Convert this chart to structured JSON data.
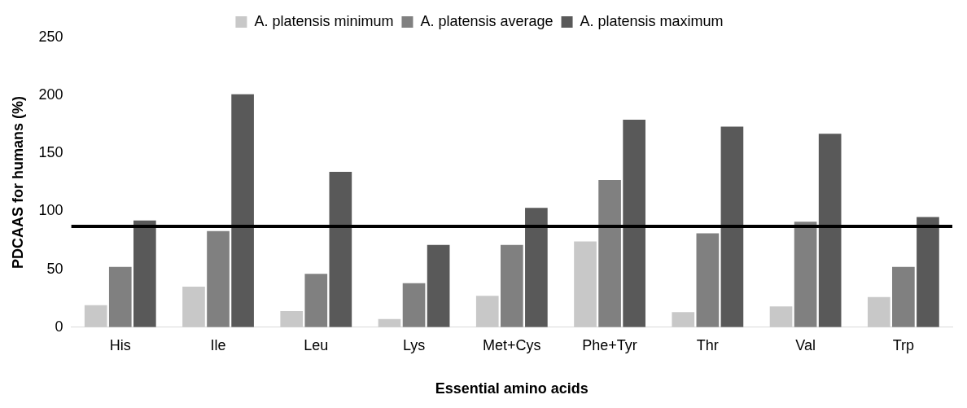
{
  "chart_data": {
    "type": "bar",
    "xlabel": "Essential amino acids",
    "ylabel": "PDCAAS for humans (%)",
    "categories": [
      "His",
      "Ile",
      "Leu",
      "Lys",
      "Met+Cys",
      "Phe+Tyr",
      "Thr",
      "Val",
      "Trp"
    ],
    "series": [
      {
        "name": "A. platensis minimum",
        "color": "#c8c8c8",
        "values": [
          19,
          35,
          14,
          7,
          27,
          74,
          13,
          18,
          26
        ]
      },
      {
        "name": "A. platensis average",
        "color": "#808080",
        "values": [
          52,
          83,
          46,
          38,
          71,
          127,
          81,
          91,
          52
        ]
      },
      {
        "name": "A. platensis maximum",
        "color": "#595959",
        "values": [
          92,
          201,
          134,
          71,
          103,
          179,
          173,
          167,
          95
        ]
      }
    ],
    "ylim": [
      0,
      250
    ],
    "yticks": [
      0,
      50,
      100,
      150,
      200,
      250
    ],
    "grid": false,
    "legend": "top",
    "ref_lines": [
      {
        "axis": "y",
        "value": 87,
        "color": "#000000"
      }
    ]
  }
}
